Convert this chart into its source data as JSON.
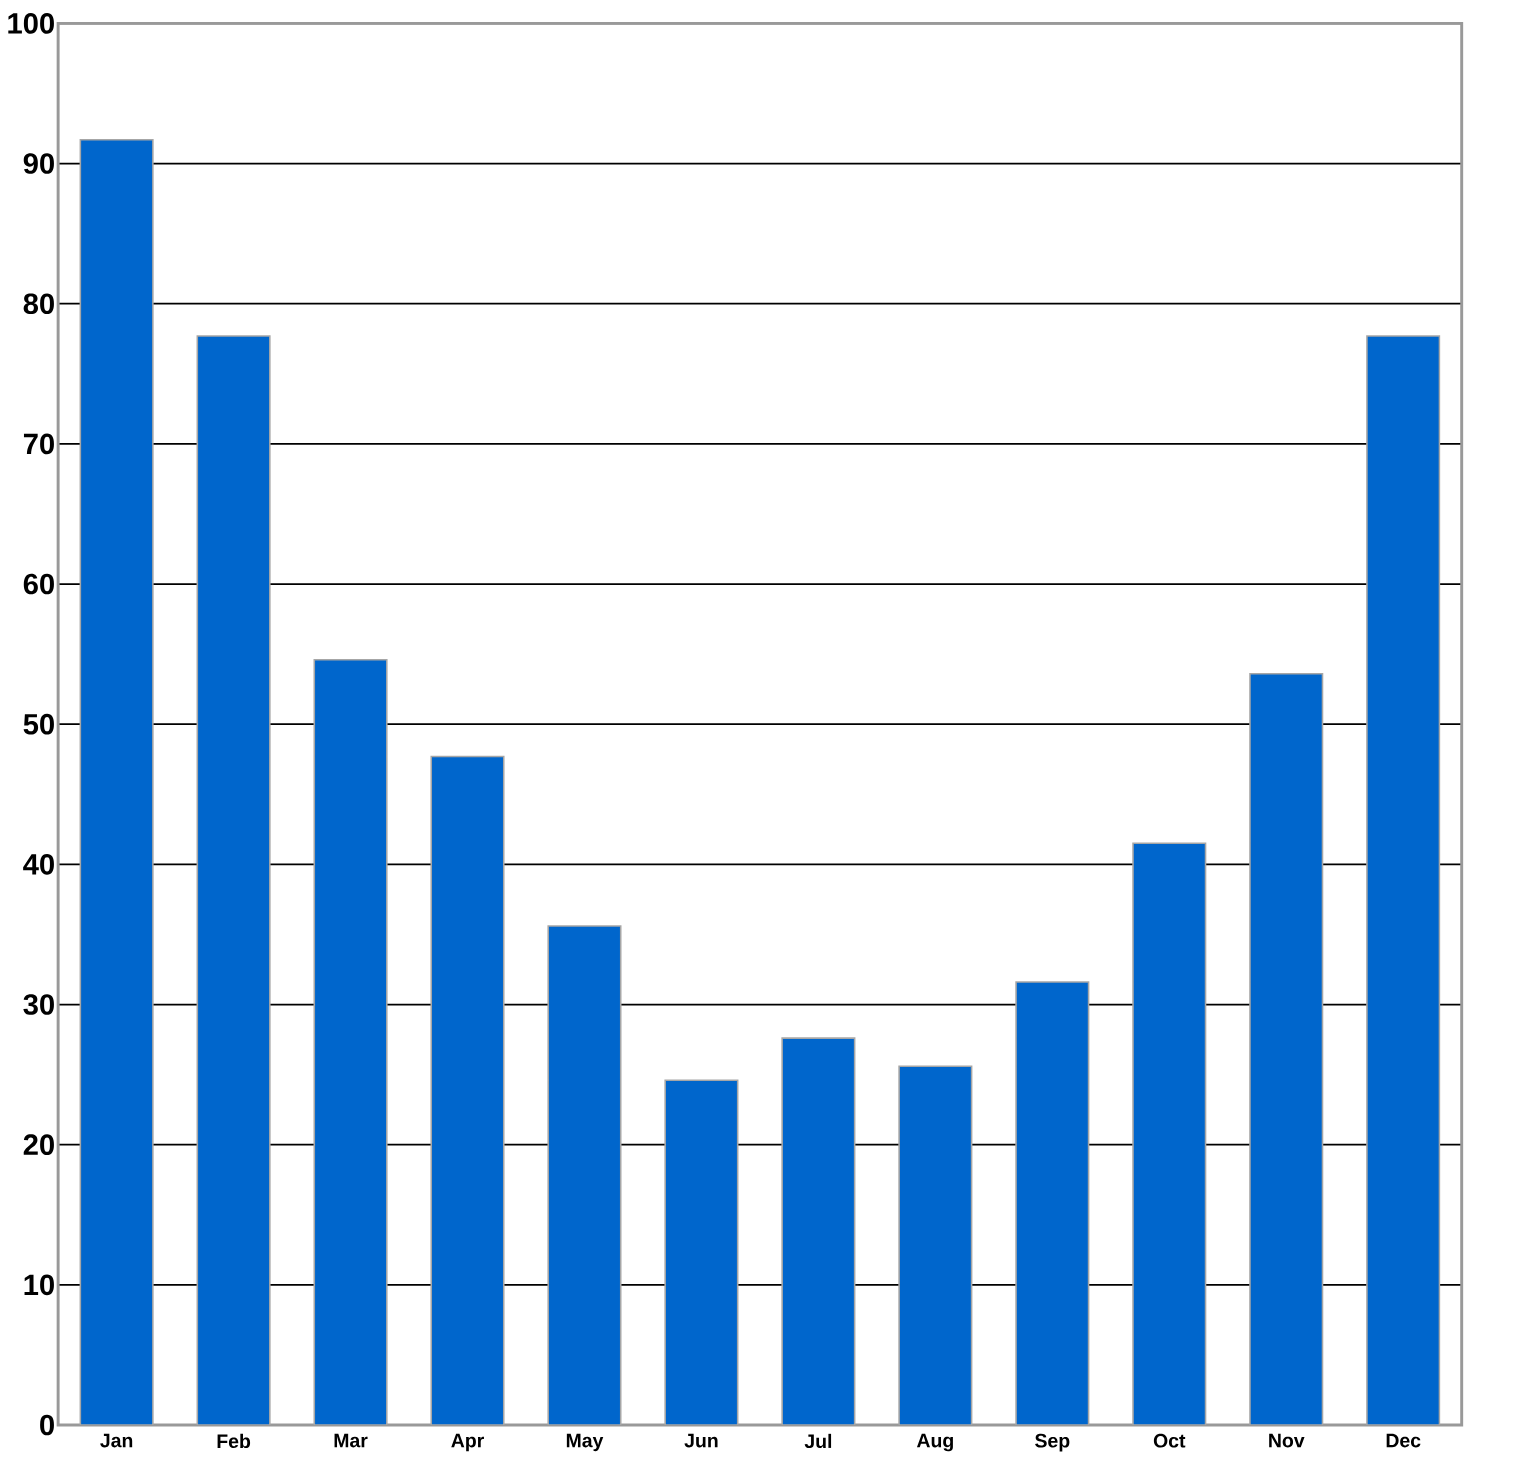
{
  "chart_data": {
    "type": "bar",
    "categories": [
      "Jan",
      "Feb",
      "Mar",
      "Apr",
      "May",
      "Jun",
      "Jul",
      "Aug",
      "Sep",
      "Oct",
      "Nov",
      "Dec"
    ],
    "values": [
      91.7,
      77.7,
      54.6,
      47.7,
      35.6,
      24.6,
      27.6,
      25.6,
      31.6,
      41.5,
      53.6,
      77.7
    ],
    "color": "#0066cc",
    "ylim": [
      0,
      100
    ],
    "yticks": [
      0,
      10,
      20,
      30,
      40,
      50,
      60,
      70,
      80,
      90,
      100
    ],
    "grid": "y"
  }
}
